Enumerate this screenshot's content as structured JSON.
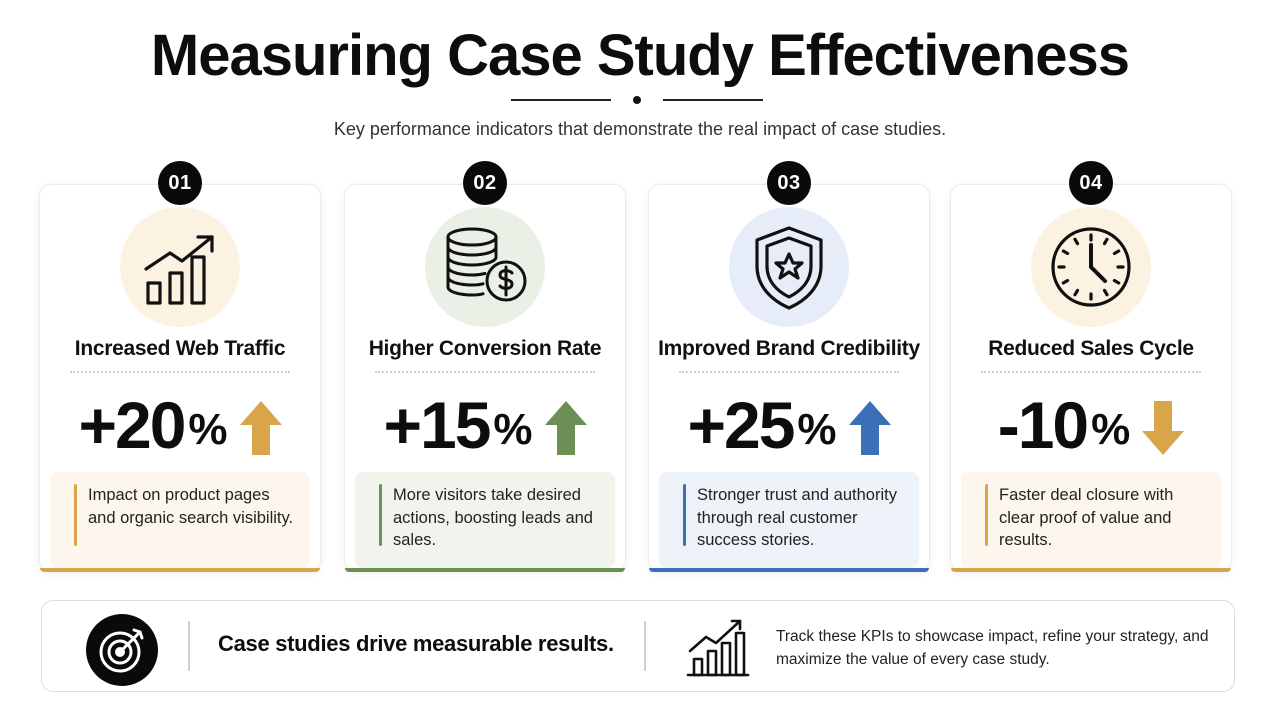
{
  "header": {
    "title": "Measuring Case Study Effectiveness",
    "subtitle": "Key performance indicators that demonstrate the real impact of case studies."
  },
  "cards": [
    {
      "number": "01",
      "icon": "growth-chart-icon",
      "title": "Increased Web Traffic",
      "value": "+20",
      "unit": "%",
      "direction": "up",
      "description": "Impact on product pages and organic search visibility.",
      "colors": {
        "accent": "#d9a54b",
        "tint": "#fbf2e2",
        "panel": "#fcf6ec"
      }
    },
    {
      "number": "02",
      "icon": "coins-dollar-icon",
      "title": "Higher Conversion Rate",
      "value": "+15",
      "unit": "%",
      "direction": "up",
      "description": "More visitors take desired actions, boosting leads and sales.",
      "colors": {
        "accent": "#6b8f55",
        "tint": "#eaf0e5",
        "panel": "#f0f4ec"
      }
    },
    {
      "number": "03",
      "icon": "shield-star-icon",
      "title": "Improved Brand Credibility",
      "value": "+25",
      "unit": "%",
      "direction": "up",
      "description": "Stronger trust and authority through real customer success stories.",
      "colors": {
        "accent": "#3b6fb6",
        "tint": "#e6edf8",
        "panel": "#eef3fa"
      }
    },
    {
      "number": "04",
      "icon": "clock-icon",
      "title": "Reduced Sales Cycle",
      "value": "-10",
      "unit": "%",
      "direction": "down",
      "description": "Faster deal closure with clear proof of value and results.",
      "colors": {
        "accent": "#d9a54b",
        "tint": "#fbf2e2",
        "panel": "#fcf6ec"
      }
    }
  ],
  "footer": {
    "icon": "target-icon",
    "headline": "Case studies drive measurable results.",
    "chart_icon": "bar-growth-icon",
    "note": "Track these KPIs to showcase impact, refine your strategy, and maximize the value of every case study."
  }
}
